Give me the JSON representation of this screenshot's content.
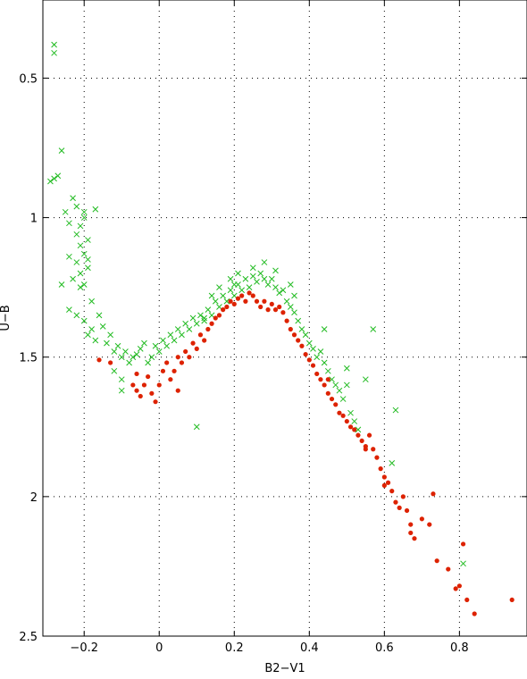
{
  "chart_data": {
    "type": "scatter",
    "xlabel": "B2−V1",
    "ylabel": "U−B",
    "xlim": [
      -0.31,
      0.98
    ],
    "ylim": [
      2.5,
      0.22
    ],
    "y_inverted": true,
    "grid": true,
    "x_ticks": [
      -0.2,
      0,
      0.2,
      0.4,
      0.6,
      0.8
    ],
    "x_tick_labels": [
      "−0.2",
      "0",
      "0.2",
      "0.4",
      "0.6",
      "0.8"
    ],
    "y_ticks": [
      0.5,
      1,
      1.5,
      2,
      2.5
    ],
    "y_tick_labels": [
      "0.5",
      "1",
      "1.5",
      "2",
      "2.5"
    ],
    "series": [
      {
        "marker": "cross",
        "color": "#22bb22",
        "points": [
          [
            -0.28,
            0.38
          ],
          [
            -0.28,
            0.41
          ],
          [
            -0.26,
            0.76
          ],
          [
            -0.28,
            0.86
          ],
          [
            -0.27,
            0.85
          ],
          [
            -0.29,
            0.87
          ],
          [
            -0.23,
            0.93
          ],
          [
            -0.22,
            0.96
          ],
          [
            -0.25,
            0.98
          ],
          [
            -0.2,
            1.0
          ],
          [
            -0.21,
            1.03
          ],
          [
            -0.24,
            1.02
          ],
          [
            -0.22,
            1.06
          ],
          [
            -0.2,
            0.98
          ],
          [
            -0.19,
            1.08
          ],
          [
            -0.17,
            0.97
          ],
          [
            -0.21,
            1.1
          ],
          [
            -0.2,
            1.13
          ],
          [
            -0.19,
            1.15
          ],
          [
            -0.22,
            1.16
          ],
          [
            -0.21,
            1.2
          ],
          [
            -0.24,
            1.14
          ],
          [
            -0.23,
            1.22
          ],
          [
            -0.2,
            1.24
          ],
          [
            -0.19,
            1.18
          ],
          [
            -0.18,
            1.3
          ],
          [
            -0.21,
            1.25
          ],
          [
            -0.26,
            1.24
          ],
          [
            -0.22,
            1.35
          ],
          [
            -0.24,
            1.33
          ],
          [
            -0.2,
            1.37
          ],
          [
            -0.18,
            1.4
          ],
          [
            -0.17,
            1.44
          ],
          [
            -0.19,
            1.42
          ],
          [
            -0.16,
            1.35
          ],
          [
            -0.15,
            1.39
          ],
          [
            -0.14,
            1.45
          ],
          [
            -0.13,
            1.42
          ],
          [
            -0.12,
            1.48
          ],
          [
            -0.11,
            1.46
          ],
          [
            -0.1,
            1.5
          ],
          [
            -0.09,
            1.48
          ],
          [
            -0.08,
            1.52
          ],
          [
            -0.07,
            1.5
          ],
          [
            -0.06,
            1.49
          ],
          [
            -0.05,
            1.47
          ],
          [
            -0.04,
            1.45
          ],
          [
            -0.03,
            1.52
          ],
          [
            -0.02,
            1.5
          ],
          [
            -0.01,
            1.46
          ],
          [
            0.0,
            1.48
          ],
          [
            0.01,
            1.44
          ],
          [
            0.02,
            1.46
          ],
          [
            0.03,
            1.42
          ],
          [
            0.04,
            1.44
          ],
          [
            0.05,
            1.4
          ],
          [
            0.06,
            1.42
          ],
          [
            0.07,
            1.38
          ],
          [
            0.08,
            1.4
          ],
          [
            0.09,
            1.36
          ],
          [
            0.1,
            1.38
          ],
          [
            0.11,
            1.35
          ],
          [
            0.12,
            1.37
          ],
          [
            0.13,
            1.33
          ],
          [
            0.14,
            1.35
          ],
          [
            0.15,
            1.3
          ],
          [
            0.16,
            1.32
          ],
          [
            0.17,
            1.28
          ],
          [
            0.18,
            1.3
          ],
          [
            0.19,
            1.26
          ],
          [
            0.2,
            1.28
          ],
          [
            0.21,
            1.24
          ],
          [
            0.22,
            1.26
          ],
          [
            0.23,
            1.22
          ],
          [
            0.24,
            1.25
          ],
          [
            0.25,
            1.21
          ],
          [
            0.26,
            1.23
          ],
          [
            0.27,
            1.2
          ],
          [
            0.28,
            1.22
          ],
          [
            0.29,
            1.24
          ],
          [
            0.3,
            1.22
          ],
          [
            0.31,
            1.25
          ],
          [
            0.32,
            1.27
          ],
          [
            0.33,
            1.26
          ],
          [
            0.34,
            1.3
          ],
          [
            0.35,
            1.32
          ],
          [
            0.36,
            1.34
          ],
          [
            0.37,
            1.37
          ],
          [
            0.38,
            1.4
          ],
          [
            0.39,
            1.42
          ],
          [
            0.4,
            1.45
          ],
          [
            0.41,
            1.47
          ],
          [
            0.42,
            1.5
          ],
          [
            0.43,
            1.48
          ],
          [
            0.44,
            1.52
          ],
          [
            0.45,
            1.55
          ],
          [
            0.46,
            1.58
          ],
          [
            0.47,
            1.6
          ],
          [
            0.48,
            1.62
          ],
          [
            0.49,
            1.65
          ],
          [
            0.5,
            1.6
          ],
          [
            0.51,
            1.7
          ],
          [
            0.52,
            1.73
          ],
          [
            0.53,
            1.76
          ],
          [
            -0.12,
            1.55
          ],
          [
            -0.1,
            1.58
          ],
          [
            -0.1,
            1.62
          ],
          [
            0.1,
            1.75
          ],
          [
            0.28,
            1.16
          ],
          [
            0.31,
            1.19
          ],
          [
            0.35,
            1.24
          ],
          [
            0.44,
            1.4
          ],
          [
            0.57,
            1.4
          ],
          [
            0.5,
            1.54
          ],
          [
            0.63,
            1.69
          ],
          [
            0.62,
            1.88
          ],
          [
            0.81,
            2.24
          ],
          [
            0.55,
            1.58
          ],
          [
            0.36,
            1.28
          ],
          [
            0.25,
            1.18
          ],
          [
            0.21,
            1.2
          ],
          [
            0.19,
            1.22
          ],
          [
            0.16,
            1.25
          ],
          [
            0.14,
            1.28
          ],
          [
            0.2,
            1.24
          ],
          [
            0.12,
            1.36
          ]
        ]
      },
      {
        "marker": "dot",
        "color": "#dd2200",
        "points": [
          [
            -0.16,
            1.51
          ],
          [
            -0.13,
            1.52
          ],
          [
            -0.07,
            1.6
          ],
          [
            -0.06,
            1.62
          ],
          [
            -0.05,
            1.64
          ],
          [
            -0.04,
            1.6
          ],
          [
            -0.03,
            1.57
          ],
          [
            -0.02,
            1.63
          ],
          [
            -0.01,
            1.66
          ],
          [
            0.0,
            1.6
          ],
          [
            0.01,
            1.55
          ],
          [
            0.02,
            1.52
          ],
          [
            0.03,
            1.58
          ],
          [
            0.04,
            1.55
          ],
          [
            0.05,
            1.5
          ],
          [
            0.06,
            1.52
          ],
          [
            0.07,
            1.48
          ],
          [
            0.08,
            1.5
          ],
          [
            0.09,
            1.45
          ],
          [
            0.1,
            1.47
          ],
          [
            0.11,
            1.42
          ],
          [
            0.12,
            1.44
          ],
          [
            0.13,
            1.4
          ],
          [
            0.14,
            1.38
          ],
          [
            0.15,
            1.36
          ],
          [
            0.16,
            1.35
          ],
          [
            0.17,
            1.33
          ],
          [
            0.18,
            1.32
          ],
          [
            0.19,
            1.3
          ],
          [
            0.2,
            1.31
          ],
          [
            0.21,
            1.29
          ],
          [
            0.22,
            1.28
          ],
          [
            0.23,
            1.3
          ],
          [
            0.24,
            1.27
          ],
          [
            0.25,
            1.28
          ],
          [
            0.26,
            1.3
          ],
          [
            0.27,
            1.32
          ],
          [
            0.28,
            1.3
          ],
          [
            0.29,
            1.33
          ],
          [
            0.3,
            1.31
          ],
          [
            0.31,
            1.33
          ],
          [
            0.32,
            1.32
          ],
          [
            0.33,
            1.34
          ],
          [
            0.34,
            1.37
          ],
          [
            0.35,
            1.4
          ],
          [
            0.36,
            1.42
          ],
          [
            0.37,
            1.44
          ],
          [
            0.38,
            1.46
          ],
          [
            0.39,
            1.49
          ],
          [
            0.4,
            1.51
          ],
          [
            0.41,
            1.53
          ],
          [
            0.42,
            1.56
          ],
          [
            0.43,
            1.58
          ],
          [
            0.44,
            1.6
          ],
          [
            0.45,
            1.63
          ],
          [
            0.46,
            1.65
          ],
          [
            0.47,
            1.67
          ],
          [
            0.48,
            1.7
          ],
          [
            0.49,
            1.71
          ],
          [
            0.5,
            1.73
          ],
          [
            0.51,
            1.75
          ],
          [
            0.52,
            1.76
          ],
          [
            0.53,
            1.78
          ],
          [
            0.54,
            1.8
          ],
          [
            0.55,
            1.82
          ],
          [
            0.56,
            1.78
          ],
          [
            0.57,
            1.83
          ],
          [
            0.58,
            1.86
          ],
          [
            0.59,
            1.9
          ],
          [
            0.6,
            1.93
          ],
          [
            0.61,
            1.95
          ],
          [
            0.62,
            1.98
          ],
          [
            0.63,
            2.02
          ],
          [
            0.64,
            2.04
          ],
          [
            0.65,
            2.0
          ],
          [
            0.66,
            2.05
          ],
          [
            0.67,
            2.1
          ],
          [
            0.68,
            2.15
          ],
          [
            0.7,
            2.08
          ],
          [
            0.72,
            2.1
          ],
          [
            0.73,
            1.99
          ],
          [
            0.74,
            2.23
          ],
          [
            0.77,
            2.26
          ],
          [
            0.79,
            2.33
          ],
          [
            0.8,
            2.32
          ],
          [
            0.81,
            2.17
          ],
          [
            0.82,
            2.37
          ],
          [
            0.84,
            2.42
          ],
          [
            0.94,
            2.37
          ],
          [
            0.67,
            2.13
          ],
          [
            0.6,
            1.96
          ],
          [
            0.55,
            1.83
          ],
          [
            0.45,
            1.58
          ],
          [
            0.05,
            1.62
          ],
          [
            -0.06,
            1.56
          ]
        ]
      }
    ]
  }
}
